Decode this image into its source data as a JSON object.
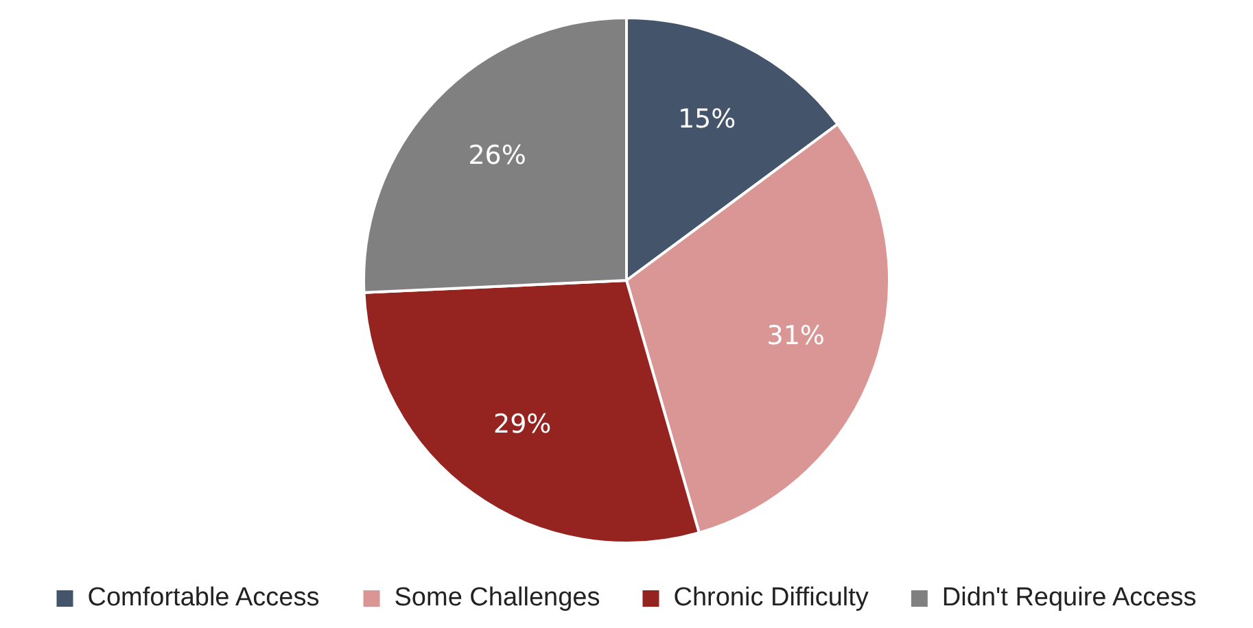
{
  "chart_data": {
    "type": "pie",
    "categories": [
      "Comfortable Access",
      "Some Challenges",
      "Chronic Difficulty",
      "Didn't Require Access"
    ],
    "values": [
      15,
      31,
      29,
      26
    ],
    "colors": [
      "#44546a",
      "#da9694",
      "#95231f",
      "#808080"
    ],
    "value_labels": [
      "15%",
      "31%",
      "29%",
      "26%"
    ],
    "legend": "bottom"
  }
}
